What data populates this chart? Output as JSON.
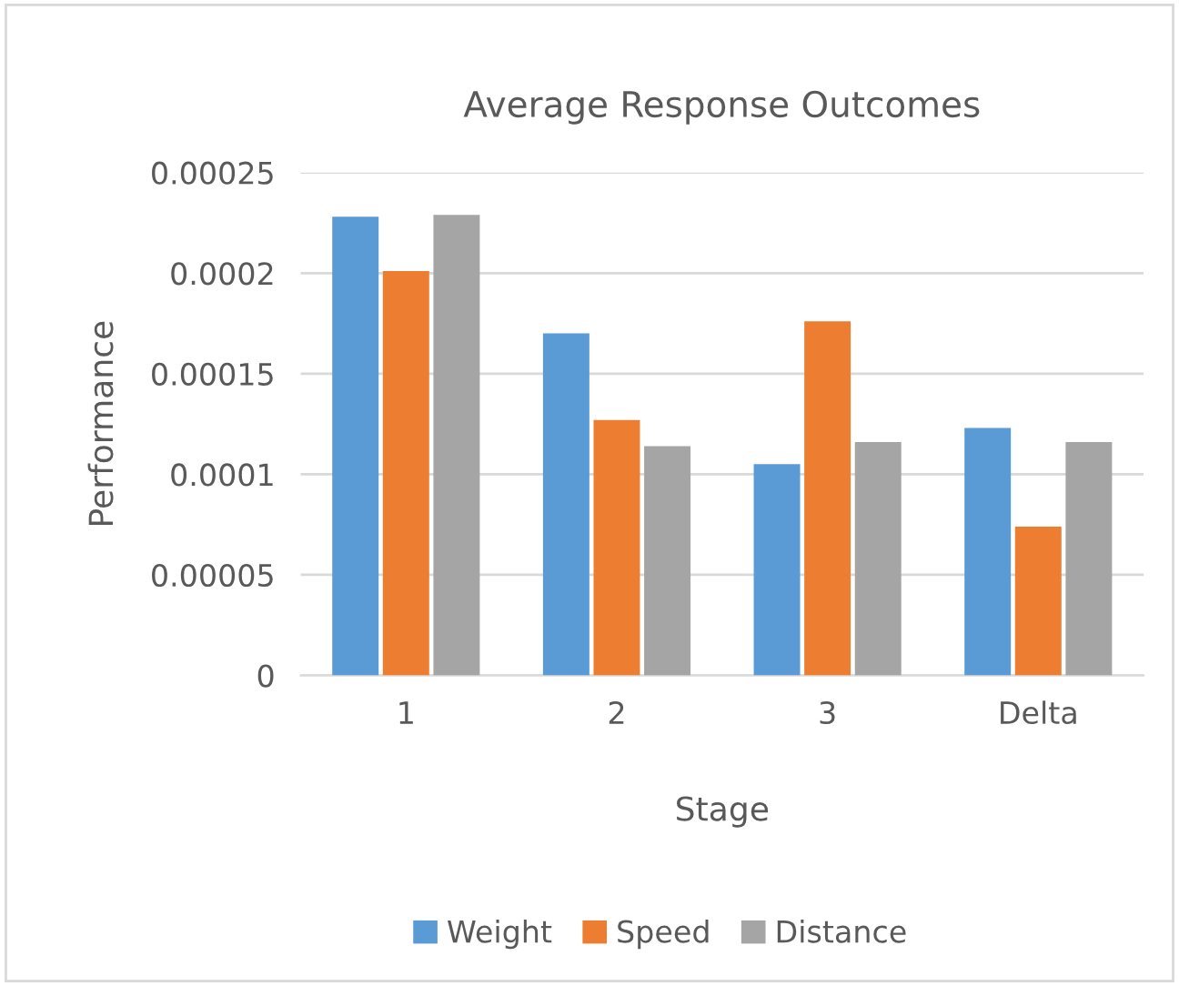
{
  "chart_data": {
    "type": "bar",
    "title": "Average Response Outcomes",
    "xlabel": "Stage",
    "ylabel": "Performance",
    "categories": [
      "1",
      "2",
      "3",
      "Delta"
    ],
    "series": [
      {
        "name": "Weight",
        "color": "#5b9bd5",
        "values": [
          0.000228,
          0.00017,
          0.000105,
          0.000123
        ]
      },
      {
        "name": "Speed",
        "color": "#ed7d31",
        "values": [
          0.000201,
          0.000127,
          0.000176,
          7.4e-05
        ]
      },
      {
        "name": "Distance",
        "color": "#a5a5a5",
        "values": [
          0.000229,
          0.000114,
          0.000116,
          0.000116
        ]
      }
    ],
    "ylim": [
      0,
      0.00025
    ],
    "yticks": [
      0,
      {
        "value": 5e-05,
        "label": "0.00005"
      },
      0.0001,
      0.00015,
      0.0002,
      0.00025
    ],
    "grid": "y",
    "legend": "bottom"
  }
}
